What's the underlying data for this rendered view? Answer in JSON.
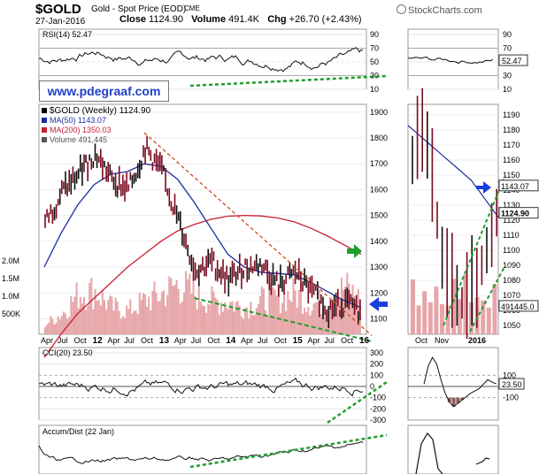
{
  "header": {
    "symbol": "$GOLD",
    "subtitle": "Gold - Spot Price (EOD)",
    "exchange": "CME",
    "date": "27-Jan-2016",
    "close_label": "Close",
    "close": "1124.90",
    "volume_label": "Volume",
    "volume": "491.4K",
    "chg_label": "Chg",
    "chg": "+26.70 (+2.43%)",
    "brand": "StockCharts.com"
  },
  "watermark": "www.pdegraaf.com",
  "colors": {
    "price_bar": "#7a0a1e",
    "ma50": "#1a2d9c",
    "ma200": "#c81e32",
    "volume": "#e6a5a8",
    "trend_green": "#1f9e2e",
    "trend_orange": "#d4471a",
    "arrow_blue": "#1a3fe0",
    "arrow_green": "#1f9e2e",
    "osc_fill": "#5a8a5a",
    "osc_fill_neg": "#8a5a5a"
  },
  "panels": {
    "rsi": {
      "label": "RSI(14) 52.47",
      "ticks": [
        "90",
        "70",
        "50",
        "30",
        "10"
      ],
      "zoom_ticks": [
        "90",
        "70",
        "50",
        "30",
        "10"
      ],
      "last": "52.47"
    },
    "price": {
      "legend": [
        "$GOLD (Weekly) 1124.90",
        "MA(50) 1143.07",
        "MA(200) 1350.03",
        "Volume 491,445"
      ],
      "ticks": [
        "1900",
        "1800",
        "1700",
        "1600",
        "1500",
        "1400",
        "1300",
        "1200",
        "1100"
      ],
      "volume_ticks": [
        "2.0M",
        "1.5M",
        "1.0M",
        "500K"
      ],
      "zoom_ticks": [
        "1190",
        "1180",
        "1170",
        "1160",
        "1150",
        "1140",
        "1130",
        "1120",
        "1110",
        "1100",
        "1090",
        "1080",
        "1070",
        "1060",
        "1050"
      ],
      "zoom_labels": {
        "ma50": "1143.07",
        "close": "1124.90",
        "volume": "491445.0"
      }
    },
    "cci": {
      "label": "CCI(20) 23.50",
      "ticks": [
        "300",
        "200",
        "100",
        "0",
        "-100",
        "-200",
        "-300"
      ],
      "zoom_ticks": [
        "100",
        "-100"
      ],
      "last": "23.50"
    },
    "accum": {
      "label": "Accum/Dist (22 Jan)"
    }
  },
  "x_axis": {
    "labels": [
      "Apr",
      "Jul",
      "Oct",
      "12",
      "Apr",
      "Jul",
      "Oct",
      "13",
      "Apr",
      "Jul",
      "Oct",
      "14",
      "Apr",
      "Jul",
      "Oct",
      "15",
      "Apr",
      "Jul",
      "Oct",
      "16"
    ],
    "zoom_labels": [
      "Oct",
      "Nov",
      "2016"
    ]
  },
  "chart_data": {
    "type": "line",
    "title": "$GOLD (Weekly)",
    "frequency": "weekly",
    "x": [
      "2011-04",
      "2011-07",
      "2011-10",
      "2012-01",
      "2012-04",
      "2012-07",
      "2012-10",
      "2013-01",
      "2013-04",
      "2013-07",
      "2013-10",
      "2014-01",
      "2014-04",
      "2014-07",
      "2014-10",
      "2015-01",
      "2015-04",
      "2015-07",
      "2015-10",
      "2016-01"
    ],
    "ylim": [
      1040,
      1930
    ],
    "series": [
      {
        "name": "$GOLD (Weekly)",
        "values": [
          1470,
          1590,
          1660,
          1740,
          1640,
          1600,
          1760,
          1670,
          1480,
          1290,
          1320,
          1250,
          1300,
          1310,
          1230,
          1280,
          1200,
          1140,
          1160,
          1125
        ]
      },
      {
        "name": "MA(50)",
        "values": [
          1300,
          1430,
          1540,
          1620,
          1660,
          1670,
          1700,
          1690,
          1640,
          1550,
          1450,
          1350,
          1300,
          1280,
          1275,
          1270,
          1240,
          1205,
          1170,
          1143
        ]
      },
      {
        "name": "MA(200)",
        "values": [
          950,
          1040,
          1120,
          1180,
          1240,
          1300,
          1350,
          1400,
          1440,
          1465,
          1485,
          1497,
          1500,
          1498,
          1490,
          1475,
          1450,
          1420,
          1385,
          1350
        ]
      }
    ],
    "volume": [
      150000,
      300000,
      600000,
      650000,
      400000,
      350000,
      500000,
      600000,
      750000,
      600000,
      500000,
      480000,
      400000,
      500000,
      550000,
      600000,
      450000,
      500000,
      700000,
      491445
    ],
    "trendlines": [
      {
        "name": "falling resistance",
        "from": [
          "2012-10",
          1820
        ],
        "to": [
          "2016-01",
          1090
        ]
      },
      {
        "name": "rising support",
        "from": [
          "2013-07",
          1180
        ],
        "to": [
          "2016-01",
          1040
        ]
      }
    ]
  }
}
